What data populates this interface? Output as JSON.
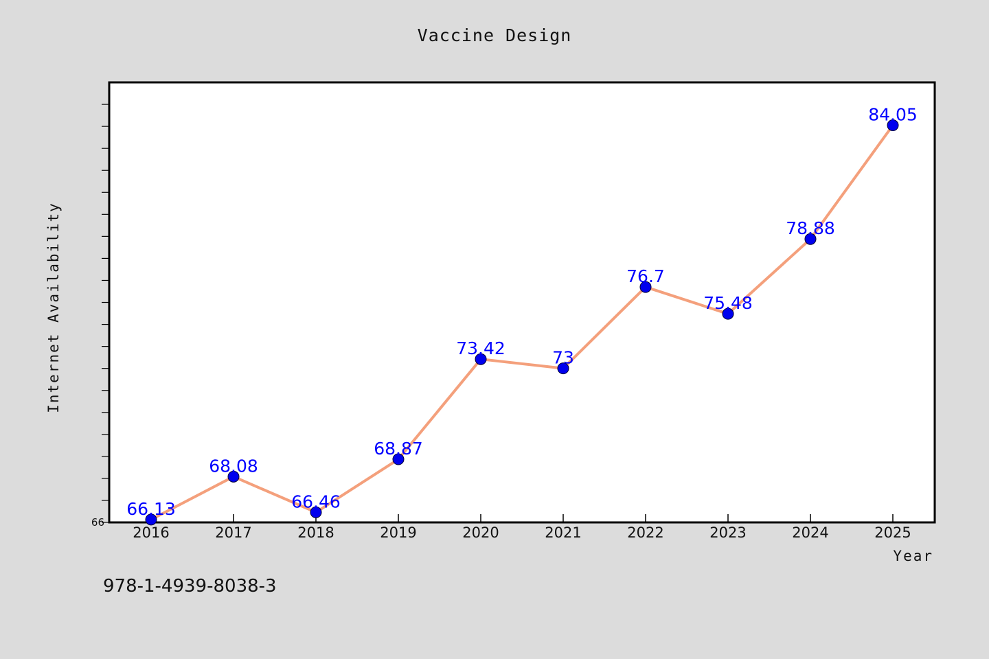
{
  "chart_data": {
    "type": "line",
    "title": "Vaccine Design",
    "xlabel": "Year",
    "ylabel": "Internet Availability",
    "categories": [
      "2016",
      "2017",
      "2018",
      "2019",
      "2020",
      "2021",
      "2022",
      "2023",
      "2024",
      "2025"
    ],
    "values": [
      66.13,
      68.08,
      66.46,
      68.87,
      73.42,
      73,
      76.7,
      75.48,
      78.88,
      84.05
    ],
    "data_labels": [
      "66.13",
      "68.08",
      "66.46",
      "68.87",
      "73.42",
      "73",
      "76.7",
      "75.48",
      "78.88",
      "84.05"
    ],
    "ylim": [
      66,
      86
    ],
    "y_tick_labels": [
      "66"
    ],
    "grid": false,
    "line_color": "#f4a07c",
    "marker_color": "#0000ee",
    "label_color": "#0000ff"
  },
  "footer_text": "978-1-4939-8038-3"
}
